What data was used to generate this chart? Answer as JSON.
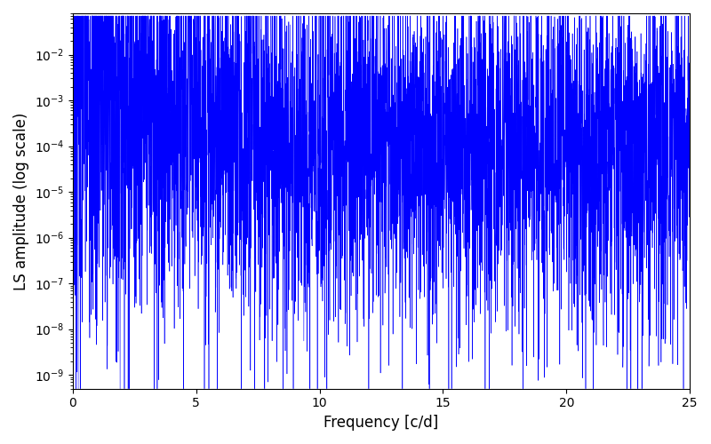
{
  "title": "",
  "xlabel": "Frequency [c/d]",
  "ylabel": "LS amplitude (log scale)",
  "xlim": [
    0,
    25
  ],
  "ylim": [
    5e-10,
    0.08
  ],
  "line_color": "blue",
  "line_width": 0.4,
  "figsize": [
    8.0,
    5.0
  ],
  "dpi": 100,
  "yscale": "log",
  "freq_max": 25.0,
  "n_points": 5000,
  "seed": 7
}
